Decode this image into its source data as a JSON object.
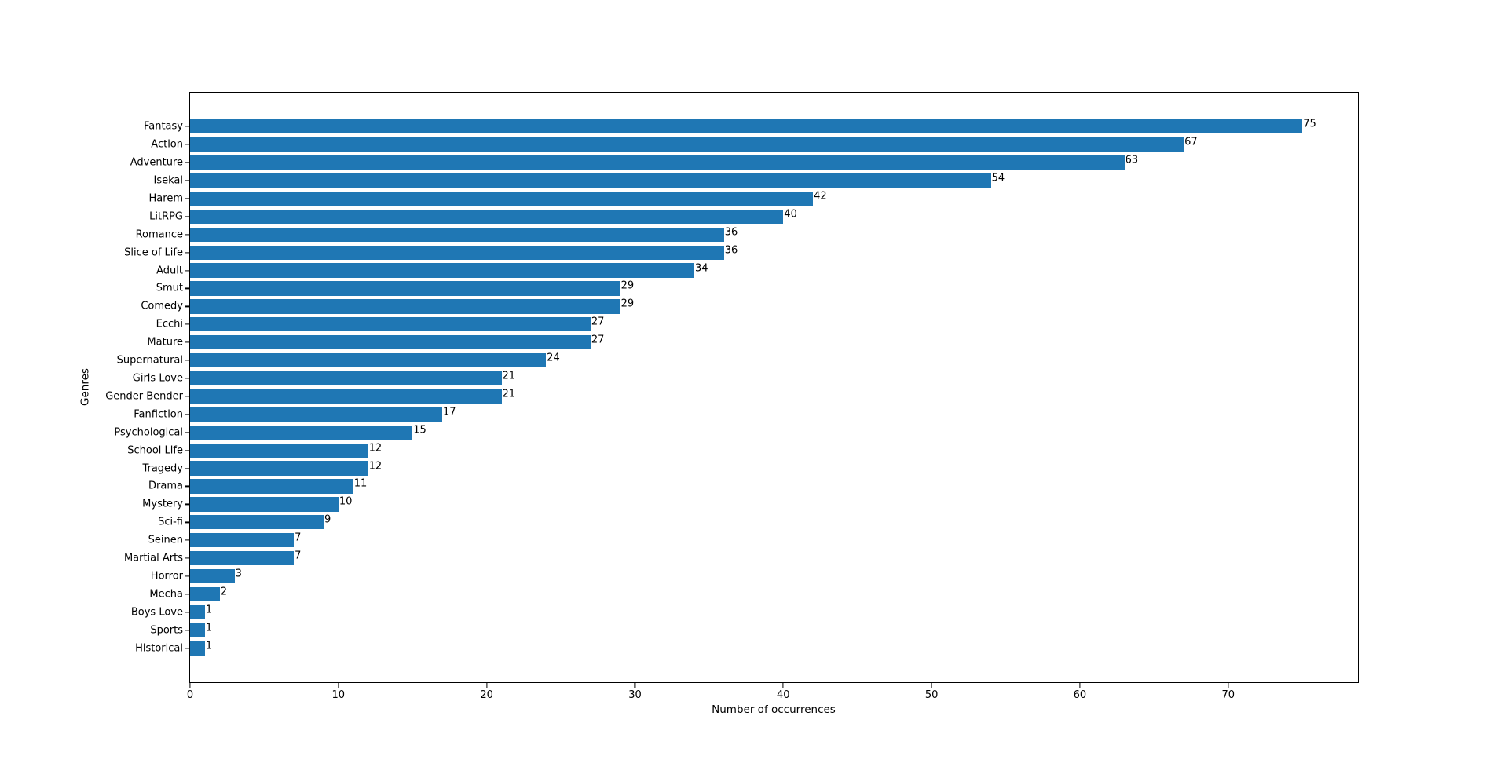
{
  "chart_data": {
    "type": "bar",
    "orientation": "horizontal",
    "title": "",
    "xlabel": "Number of occurrences",
    "ylabel": "Genres",
    "categories": [
      "Fantasy",
      "Action",
      "Adventure",
      "Isekai",
      "Harem",
      "LitRPG",
      "Romance",
      "Slice of Life",
      "Adult",
      "Smut",
      "Comedy",
      "Ecchi",
      "Mature",
      "Supernatural",
      "Girls Love",
      "Gender Bender",
      "Fanfiction",
      "Psychological",
      "School Life",
      "Tragedy",
      "Drama",
      "Mystery",
      "Sci-fi",
      "Seinen",
      "Martial Arts",
      "Horror",
      "Mecha",
      "Boys Love",
      "Sports",
      "Historical"
    ],
    "values": [
      75,
      67,
      63,
      54,
      42,
      40,
      36,
      36,
      34,
      29,
      29,
      27,
      27,
      24,
      21,
      21,
      17,
      15,
      12,
      12,
      11,
      10,
      9,
      7,
      7,
      3,
      2,
      1,
      1,
      1
    ],
    "xticks": [
      0,
      10,
      20,
      30,
      40,
      50,
      60,
      70
    ],
    "xlim": [
      0,
      78.75
    ],
    "bar_color": "#1f77b4",
    "grid": false,
    "bar_value_labels_shown": true,
    "legend_position": "none"
  }
}
